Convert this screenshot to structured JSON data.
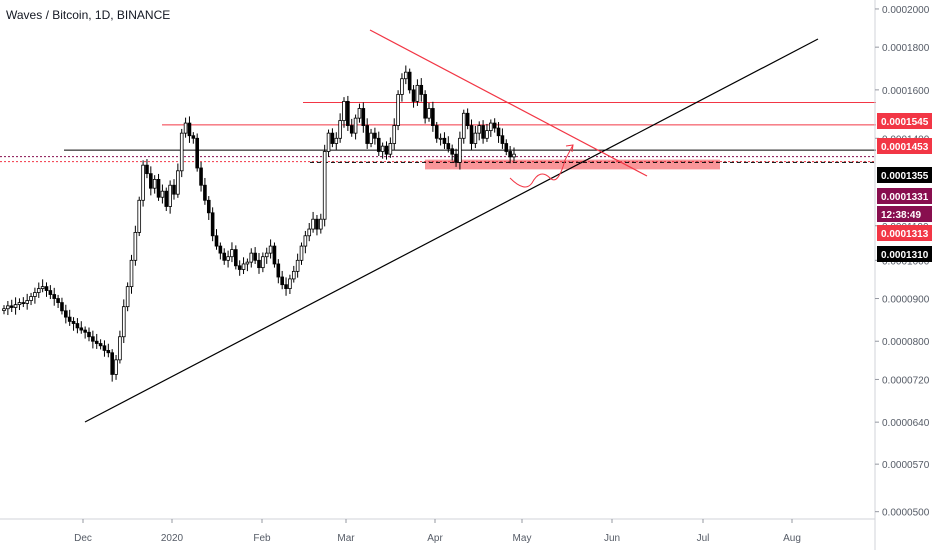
{
  "title": "Waves / Bitcoin, 1D, BINANCE",
  "colors": {
    "candle": "#000000",
    "background": "#ffffff",
    "axis_text": "#555b66",
    "resistance": "#f23645",
    "support_zone": "#f77c80",
    "trendline": "#000000",
    "label_red": "#f23645",
    "label_black": "#000000",
    "label_maroon": "#880e4f"
  },
  "chart_data": {
    "type": "candlestick",
    "title": "Waves / Bitcoin, 1D, BINANCE",
    "y_scale": "log",
    "ylim": [
      4.9e-05,
      0.000205
    ],
    "x_axis": {
      "ticks": [
        "Dec",
        "2020",
        "Feb",
        "Mar",
        "Apr",
        "May",
        "Jun",
        "Jul",
        "Aug"
      ]
    },
    "y_axis": {
      "ticks": [
        {
          "value": 0.0002,
          "label": "0.0002000"
        },
        {
          "value": 0.00018,
          "label": "0.0001800"
        },
        {
          "value": 0.00016,
          "label": "0.0001600"
        },
        {
          "value": 0.00014,
          "label": "0.0001400"
        },
        {
          "value": 0.00011,
          "label": "0.0001100"
        },
        {
          "value": 0.0001,
          "label": "0.0001000"
        },
        {
          "value": 9e-05,
          "label": "0.0000900"
        },
        {
          "value": 8e-05,
          "label": "0.0000800"
        },
        {
          "value": 7.2e-05,
          "label": "0.0000720"
        },
        {
          "value": 6.4e-05,
          "label": "0.0000640"
        },
        {
          "value": 5.7e-05,
          "label": "0.0000570"
        },
        {
          "value": 5e-05,
          "label": "0.0000500"
        }
      ]
    },
    "price_labels": [
      {
        "value": 0.0001545,
        "label": "0.0001545",
        "style": "red"
      },
      {
        "value": 0.0001453,
        "label": "0.0001453",
        "style": "red"
      },
      {
        "value": 0.0001355,
        "label": "0.0001355",
        "style": "black"
      },
      {
        "value": 0.0001331,
        "label": "0.0001331",
        "style": "maroon"
      },
      {
        "value": 0.000128,
        "label": "12:38:49",
        "style": "maroon"
      },
      {
        "value": 0.0001313,
        "label": "0.0001313",
        "style": "red"
      },
      {
        "value": 0.000131,
        "label": "0.0001310",
        "style": "black"
      }
    ],
    "closes": [
      8.75e-05,
      8.82e-05,
      8.78e-05,
      8.85e-05,
      8.9e-05,
      8.88e-05,
      8.95e-05,
      9.05e-05,
      9.15e-05,
      9.25e-05,
      9.3e-05,
      9.2e-05,
      9.1e-05,
      9e-05,
      8.9e-05,
      8.7e-05,
      8.55e-05,
      8.45e-05,
      8.4e-05,
      8.3e-05,
      8.25e-05,
      8.2e-05,
      8.1e-05,
      8e-05,
      7.95e-05,
      7.9e-05,
      7.8e-05,
      7.75e-05,
      7.3e-05,
      7.6e-05,
      8.1e-05,
      8.8e-05,
      9.3e-05,
      0.0001,
      0.000108,
      0.000118,
      0.00013,
      0.000127,
      0.000122,
      0.000125,
      0.000119,
      0.000121,
      0.000116,
      0.000123,
      0.00012,
      0.000128,
      0.000142,
      0.000146,
      0.000141,
      0.00014,
      0.000129,
      0.000123,
      0.000118,
      0.000114,
      0.000107,
      0.000104,
      0.000102,
      0.0001,
      0.000101,
      0.000103,
      9.85e-05,
      9.75e-05,
      9.9e-05,
      9.95e-05,
      0.000102,
      0.0001,
      9.8e-05,
      0.000101,
      0.000102,
      0.000104,
      9.9e-05,
      9.55e-05,
      9.35e-05,
      9.25e-05,
      9.5e-05,
      9.7e-05,
      0.0001,
      0.000104,
      0.000107,
      0.000109,
      0.000112,
      0.000109,
      0.000112,
      0.000135,
      0.000142,
      0.000138,
      0.00014,
      0.000147,
      0.000155,
      0.000145,
      0.000142,
      0.000148,
      0.000152,
      0.000145,
      0.000138,
      0.000142,
      0.00014,
      0.000135,
      0.000137,
      0.000134,
      0.000138,
      0.000145,
      0.000158,
      0.000165,
      0.000168,
      0.00016,
      0.000155,
      0.000162,
      0.000158,
      0.000148,
      0.000152,
      0.000145,
      0.00014,
      0.00014,
      0.000138,
      0.000136,
      0.000134,
      0.000131,
      0.00014,
      0.00015,
      0.000145,
      0.000138,
      0.000142,
      0.000145,
      0.00014,
      0.000143,
      0.000146,
      0.000144,
      0.000141,
      0.000138,
      0.000135,
      0.000133,
      0.000134
    ]
  }
}
